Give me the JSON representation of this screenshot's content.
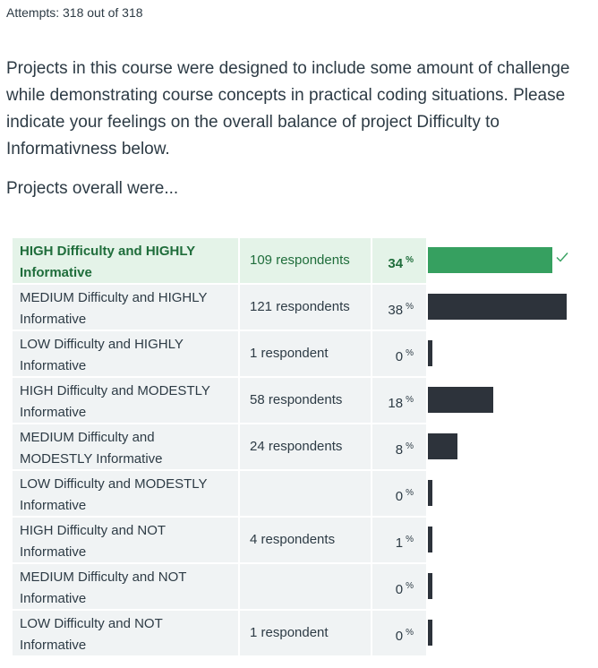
{
  "attempts": "Attempts: 318 out of 318",
  "question": "Projects in this course were designed to include some amount of challenge while demonstrating course concepts in practical coding situations. Please indicate your feelings on the overall balance of project Difficulty to Informativness below.",
  "prompt": "Projects overall were...",
  "percent_sign": "%",
  "answers": [
    {
      "label": "HIGH Difficulty and HIGHLY Informative",
      "count": "109 respondents",
      "percent": "34",
      "share": 34,
      "correct": true
    },
    {
      "label": "MEDIUM Difficulty and HIGHLY Informative",
      "count": "121 respondents",
      "percent": "38",
      "share": 38,
      "correct": false
    },
    {
      "label": "LOW Difficulty and HIGHLY Informative",
      "count": "1 respondent",
      "percent": "0",
      "share": 0.3,
      "correct": false
    },
    {
      "label": "HIGH Difficulty and MODESTLY Informative",
      "count": "58 respondents",
      "percent": "18",
      "share": 18,
      "correct": false
    },
    {
      "label": "MEDIUM Difficulty and MODESTLY Informative",
      "count": "24 respondents",
      "percent": "8",
      "share": 8,
      "correct": false
    },
    {
      "label": "LOW Difficulty and MODESTLY Informative",
      "count": "",
      "percent": "0",
      "share": 0,
      "correct": false
    },
    {
      "label": "HIGH Difficulty and NOT Informative",
      "count": "4 respondents",
      "percent": "1",
      "share": 1.3,
      "correct": false
    },
    {
      "label": "MEDIUM Difficulty and NOT Informative",
      "count": "",
      "percent": "0",
      "share": 0,
      "correct": false
    },
    {
      "label": "LOW Difficulty and NOT Informative",
      "count": "1 respondent",
      "percent": "0",
      "share": 0.3,
      "correct": false
    }
  ],
  "colors": {
    "correct_bar": "#36a060",
    "bar": "#2d333b",
    "correct_row": "#e4f3e8",
    "row": "#f0f3f4",
    "check": "#36a060"
  },
  "icons": {
    "correct": "check-icon"
  }
}
